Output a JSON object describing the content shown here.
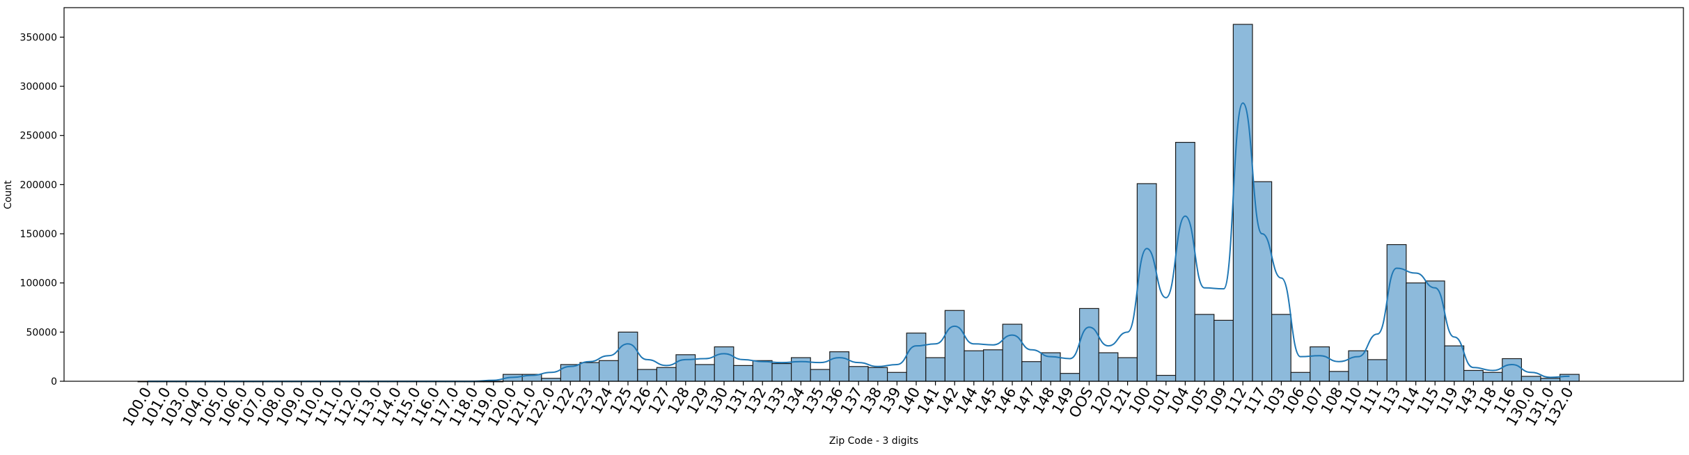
{
  "chart_data": {
    "type": "bar",
    "title": "",
    "xlabel": "Zip Code - 3 digits",
    "ylabel": "Count",
    "ylim": [
      0,
      380000
    ],
    "yticks": [
      0,
      50000,
      100000,
      150000,
      200000,
      250000,
      300000,
      350000
    ],
    "grid": false,
    "bar_color": "#8dbadb",
    "bar_edge_color": "#1a1a1a",
    "kde_color": "#1f77b4",
    "categories": [
      "100.0",
      "101.0",
      "103.0",
      "104.0",
      "105.0",
      "106.0",
      "107.0",
      "108.0",
      "109.0",
      "110.0",
      "111.0",
      "112.0",
      "113.0",
      "114.0",
      "115.0",
      "116.0",
      "117.0",
      "118.0",
      "119.0",
      "120.0",
      "121.0",
      "122.0",
      "122",
      "123",
      "124",
      "125",
      "126",
      "127",
      "128",
      "129",
      "130",
      "131",
      "132",
      "133",
      "134",
      "135",
      "136",
      "137",
      "138",
      "139",
      "140",
      "141",
      "142",
      "144",
      "145",
      "146",
      "147",
      "148",
      "149",
      "OOS",
      "120",
      "121",
      "100",
      "101",
      "104",
      "105",
      "109",
      "112",
      "117",
      "103",
      "106",
      "107",
      "108",
      "110",
      "111",
      "113",
      "114",
      "115",
      "119",
      "143",
      "118",
      "116",
      "130.0",
      "131.0",
      "132.0"
    ],
    "values": [
      0,
      0,
      0,
      0,
      0,
      0,
      0,
      0,
      0,
      0,
      0,
      0,
      0,
      0,
      0,
      0,
      0,
      0,
      0,
      7000,
      7000,
      3000,
      17000,
      19000,
      21000,
      50000,
      12000,
      14000,
      27000,
      17000,
      35000,
      16000,
      21000,
      18000,
      24000,
      12000,
      30000,
      15000,
      14000,
      9000,
      49000,
      24000,
      72000,
      31000,
      32000,
      58000,
      20000,
      29000,
      8000,
      74000,
      29000,
      24000,
      201000,
      6000,
      243000,
      68000,
      62000,
      363000,
      203000,
      68000,
      9000,
      35000,
      10000,
      31000,
      22000,
      139000,
      100000,
      102000,
      36000,
      11000,
      9000,
      23000,
      5000,
      3000,
      7000
    ],
    "kde": [
      0,
      0,
      0,
      0,
      0,
      0,
      0,
      0,
      0,
      0,
      0,
      0,
      0,
      0,
      0,
      0,
      0,
      0,
      1000,
      4000,
      6000,
      9000,
      15000,
      20000,
      26000,
      38000,
      22000,
      16000,
      22000,
      23000,
      28000,
      22000,
      20000,
      19000,
      20000,
      19000,
      24000,
      19000,
      15000,
      17000,
      36000,
      38000,
      56000,
      38000,
      37000,
      47000,
      32000,
      25000,
      23000,
      55000,
      36000,
      50000,
      135000,
      85000,
      168000,
      95000,
      94000,
      283000,
      150000,
      105000,
      25000,
      26000,
      20000,
      25000,
      48000,
      115000,
      110000,
      95000,
      45000,
      14000,
      11000,
      17000,
      9000,
      4000,
      5000
    ]
  }
}
